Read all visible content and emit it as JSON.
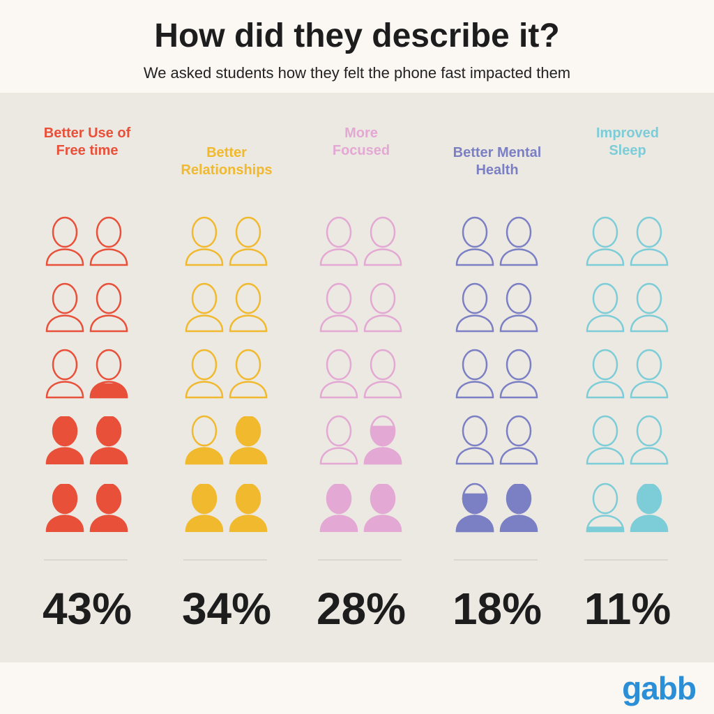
{
  "chart_data": {
    "type": "pictogram",
    "title": "How did they describe it?",
    "subtitle": "We asked students how they felt the phone fast impacted them",
    "categories": [
      "Better Use of\nFree time",
      "Better\nRelationships",
      "More\nFocused",
      "Better Mental\nHealth",
      "Improved\nSleep"
    ],
    "values": [
      43,
      34,
      28,
      18,
      11
    ],
    "value_labels": [
      "43%",
      "34%",
      "28%",
      "18%",
      "11%"
    ],
    "colors": [
      "#e8503a",
      "#f0b92e",
      "#e3a8d3",
      "#7b7fc4",
      "#7ccdd8"
    ]
  },
  "logo": "gabb"
}
